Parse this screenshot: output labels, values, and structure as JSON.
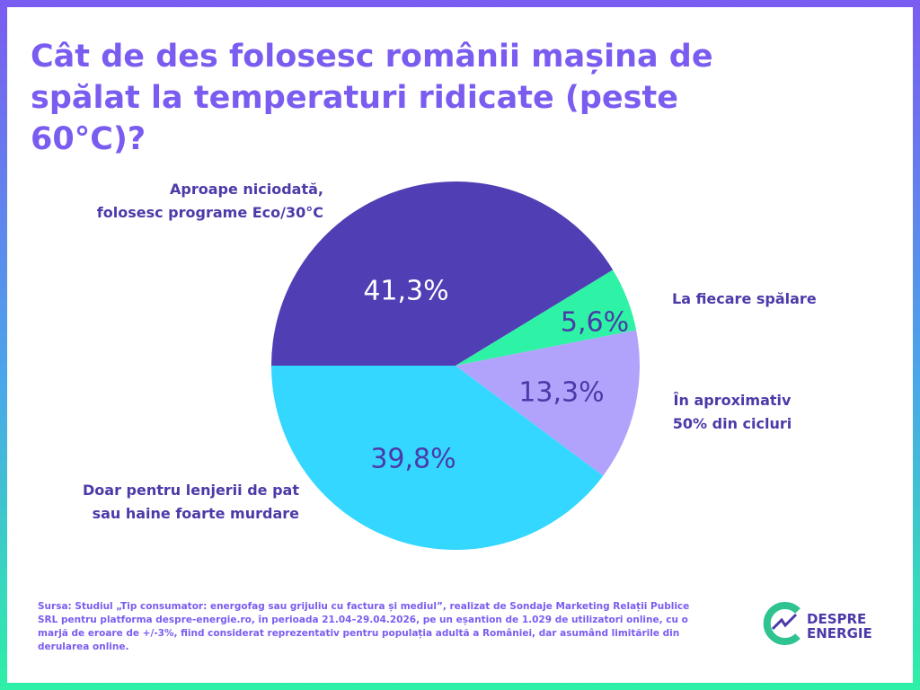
{
  "chart_data": {
    "type": "pie",
    "title": "Cât de des folosesc românii mașina de spălat la temperaturi ridicate (peste 60°C)?",
    "categories": [
      [
        "Aproape niciodată,",
        "folosesc programe Eco/30°C"
      ],
      [
        "La fiecare spălare"
      ],
      [
        "În aproximativ",
        "50% din cicluri"
      ],
      [
        "Doar pentru lenjerii de pat",
        "sau haine foarte murdare"
      ]
    ],
    "values": [
      41.3,
      5.6,
      13.3,
      39.8
    ],
    "value_labels": [
      "41,3%",
      "5,6%",
      "13,3%",
      "39,8%"
    ],
    "colors": [
      "#503eb4",
      "#2ef2a5",
      "#b1a3fb",
      "#33d7ff"
    ],
    "label_colors": [
      "#ffffff",
      "#4b3aa8",
      "#4b3aa8",
      "#4b3aa8"
    ],
    "source": "Sursa: Studiul „Tip consumator: energofag sau grijuliu cu factura și mediul”, realizat de Sondaje Marketing Relații Publice SRL pentru platforma despre-energie.ro, în perioada 21.04–29.04.2026, pe un eșantion de 1.029 de utilizatori online, cu o marjă de eroare de +/-3%, fiind considerat reprezentativ pentru populația adultă a României, dar asumând limitările din derularea online."
  },
  "logo": {
    "line1": "DESPRE",
    "line2": "ENERGIE"
  }
}
